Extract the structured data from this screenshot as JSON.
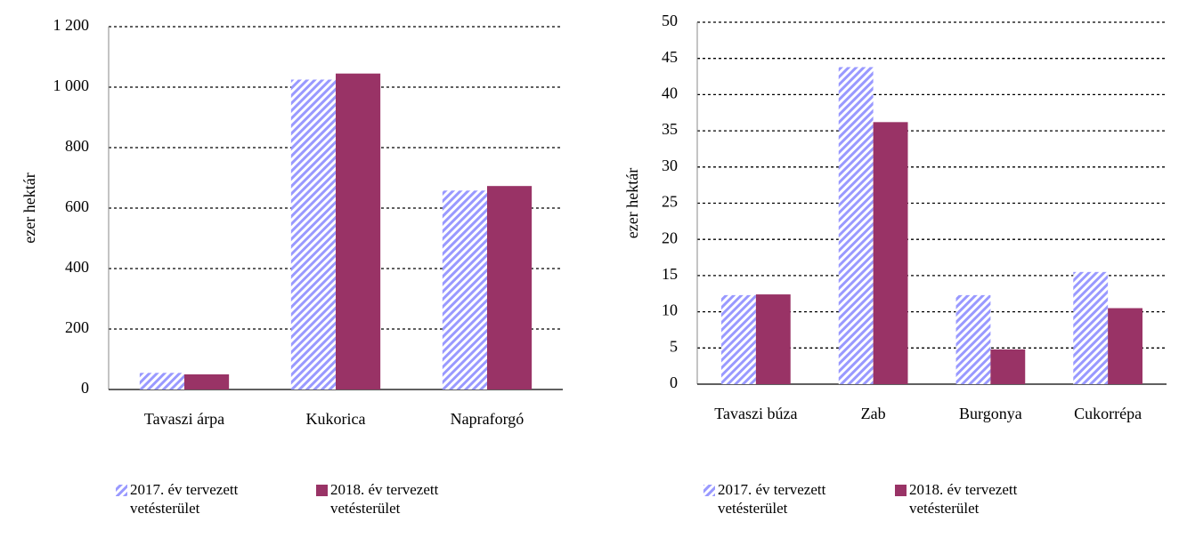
{
  "chart_data": [
    {
      "type": "bar",
      "y_label": "ezer hektár",
      "categories": [
        "Tavaszi árpa",
        "Kukorica",
        "Napraforgó"
      ],
      "series": [
        {
          "name": "2017. év tervezett vetésterület",
          "color": "#9999ff",
          "pattern": "hatch",
          "values": [
            55,
            1025,
            658
          ]
        },
        {
          "name": "2018. év tervezett vetésterület",
          "color": "#993366",
          "values": [
            50,
            1045,
            673
          ]
        }
      ],
      "ylim": [
        0,
        1200
      ],
      "yticks": [
        0,
        200,
        400,
        600,
        800,
        {
          "value": 1000,
          "label": "1 000"
        },
        {
          "value": 1200,
          "label": "1 200"
        }
      ],
      "grid": true,
      "legend": "bottom"
    },
    {
      "type": "bar",
      "y_label": "ezer hektár",
      "categories": [
        "Tavaszi búza",
        "Zab",
        "Burgonya",
        "Cukorrépa"
      ],
      "series": [
        {
          "name": "2017. év tervezett vetésterület",
          "color": "#9999ff",
          "pattern": "hatch",
          "values": [
            12.3,
            43.8,
            12.3,
            15.5
          ]
        },
        {
          "name": "2018. év tervezett vetésterület",
          "color": "#993366",
          "values": [
            12.4,
            36.2,
            4.8,
            10.5
          ]
        }
      ],
      "ylim": [
        0,
        50
      ],
      "yticks": [
        0,
        5,
        10,
        15,
        20,
        25,
        30,
        35,
        40,
        45,
        50
      ],
      "grid": true,
      "legend": "bottom"
    }
  ]
}
